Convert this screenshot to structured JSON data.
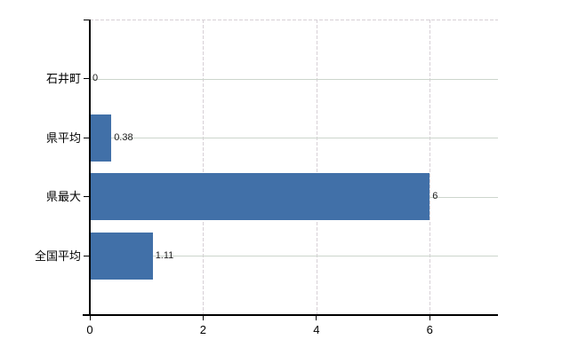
{
  "chart_data": {
    "type": "bar",
    "orientation": "horizontal",
    "title": "",
    "xlabel": "",
    "ylabel": "",
    "categories": [
      "石井町",
      "県平均",
      "県最大",
      "全国平均"
    ],
    "values": [
      0,
      0.38,
      6,
      1.11
    ],
    "value_labels": [
      "0",
      "0.38",
      "6",
      "1.11"
    ],
    "xticks": [
      0,
      2,
      4,
      6
    ],
    "xtick_labels": [
      "0",
      "2",
      "4",
      "6"
    ],
    "xlim": [
      0,
      7.2
    ],
    "grid": true,
    "legend": "none",
    "colors": {
      "bar": "#4170a8",
      "horizontal_gridline": "#ccd5cc",
      "vertical_gridline": "#d7d0d6",
      "top_border_dashed": "#d7d0d6",
      "axis": "#000000",
      "background": "#ffffff",
      "label_text": "#000000",
      "value_text": "#1a1a1a"
    }
  }
}
